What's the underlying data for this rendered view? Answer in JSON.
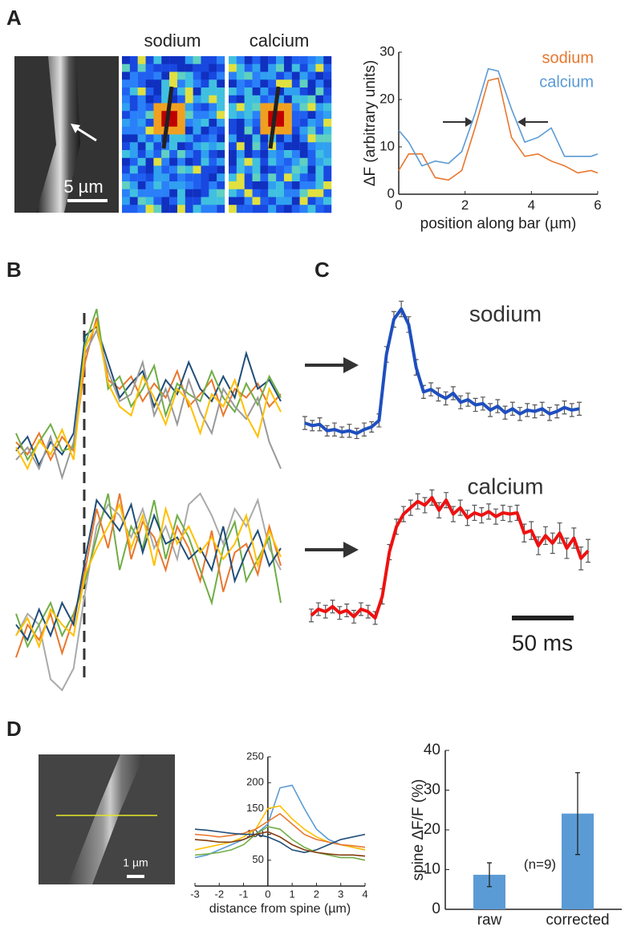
{
  "panel_labels": {
    "a": "A",
    "b": "B",
    "c": "C",
    "d": "D"
  },
  "image_labels": {
    "sodium": "sodium",
    "calcium": "calcium",
    "scale_a": "5 µm",
    "scale_d": "1 µm"
  },
  "chart_data": [
    {
      "type": "line",
      "x": [
        0,
        0.3,
        0.7,
        1.1,
        1.5,
        1.9,
        2.3,
        2.7,
        3.0,
        3.4,
        3.8,
        4.2,
        4.6,
        5.0,
        5.4,
        5.8,
        6.0
      ],
      "series": [
        {
          "name": "sodium",
          "color": "#e8772e",
          "values": [
            5,
            8.5,
            8.5,
            3.5,
            3,
            5,
            14,
            24,
            24.5,
            12,
            8,
            8.5,
            7,
            6,
            4.5,
            5,
            4.5
          ]
        },
        {
          "name": "calcium",
          "color": "#5b9bd5",
          "values": [
            13.5,
            11,
            6,
            7,
            6.5,
            9,
            17,
            26.5,
            26,
            18,
            11,
            12,
            14,
            8,
            8,
            8,
            8.5
          ]
        }
      ],
      "xlim": [
        0,
        6
      ],
      "ylim": [
        0,
        30
      ],
      "xticks": [
        0,
        2,
        4,
        6
      ],
      "yticks": [
        0,
        10,
        20,
        30
      ],
      "x_label": "position along bar (µm)",
      "y_label": "ΔF (arbitrary units)",
      "legend": "upper right"
    },
    {
      "type": "traces",
      "series": [
        {
          "color": "#e8772e",
          "values": [
            25,
            18,
            30,
            15,
            28,
            20,
            70,
            95,
            60,
            55,
            62,
            48,
            58,
            50,
            65,
            45,
            52,
            60,
            40,
            55,
            50,
            58,
            45,
            52
          ]
        },
        {
          "color": "#1f4e79",
          "values": [
            20,
            28,
            12,
            25,
            18,
            30,
            85,
            90,
            70,
            50,
            58,
            65,
            45,
            60,
            52,
            70,
            55,
            48,
            62,
            50,
            75,
            55,
            60,
            48
          ]
        },
        {
          "color": "#70ad47",
          "values": [
            30,
            15,
            25,
            35,
            20,
            22,
            80,
            100,
            55,
            62,
            45,
            55,
            68,
            40,
            58,
            52,
            48,
            65,
            50,
            42,
            58,
            46,
            62,
            50
          ]
        },
        {
          "color": "#999999",
          "values": [
            15,
            22,
            10,
            28,
            5,
            25,
            75,
            88,
            65,
            48,
            52,
            70,
            40,
            55,
            35,
            60,
            42,
            30,
            55,
            45,
            38,
            50,
            25,
            10
          ]
        },
        {
          "color": "#ffc000",
          "values": [
            22,
            10,
            26,
            18,
            32,
            15,
            78,
            92,
            58,
            45,
            40,
            62,
            50,
            35,
            55,
            48,
            30,
            52,
            45,
            60,
            40,
            28,
            55,
            42
          ]
        }
      ]
    },
    {
      "type": "traces",
      "series": [
        {
          "color": "#aaaaaa",
          "values": [
            30,
            40,
            35,
            10,
            5,
            15,
            50,
            80,
            90,
            85,
            75,
            88,
            70,
            80,
            65,
            90,
            95,
            85,
            72,
            88,
            80,
            92,
            70,
            60
          ]
        },
        {
          "color": "#70ad47",
          "values": [
            40,
            25,
            35,
            45,
            30,
            40,
            55,
            75,
            95,
            60,
            80,
            70,
            92,
            65,
            85,
            75,
            60,
            45,
            70,
            82,
            55,
            65,
            75,
            45
          ]
        },
        {
          "color": "#e8772e",
          "values": [
            20,
            35,
            28,
            40,
            22,
            38,
            60,
            88,
            70,
            95,
            65,
            82,
            75,
            60,
            80,
            70,
            55,
            78,
            50,
            68,
            72,
            58,
            80,
            62
          ]
        },
        {
          "color": "#1f4e79",
          "values": [
            35,
            28,
            42,
            30,
            45,
            35,
            65,
            92,
            85,
            78,
            90,
            68,
            85,
            72,
            75,
            65,
            70,
            60,
            80,
            55,
            68,
            78,
            62,
            70
          ]
        },
        {
          "color": "#ffc000",
          "values": [
            30,
            38,
            25,
            42,
            35,
            30,
            58,
            70,
            80,
            90,
            70,
            85,
            62,
            88,
            72,
            80,
            68,
            75,
            65,
            72,
            85,
            62,
            78,
            66
          ]
        }
      ]
    },
    {
      "type": "errortrace",
      "scale_bar_label": "50 ms",
      "series": [
        {
          "name": "sodium",
          "color": "#1f4fbf",
          "values": [
            12,
            10,
            11,
            6,
            7,
            5,
            6,
            4,
            7,
            9,
            14,
            65,
            92,
            100,
            88,
            55,
            36,
            38,
            34,
            31,
            35,
            28,
            30,
            26,
            27,
            22,
            25,
            20,
            23,
            19,
            22,
            21,
            23,
            19,
            21,
            24,
            22,
            23
          ],
          "errors": [
            5,
            4,
            5,
            4,
            5,
            4,
            5,
            4,
            5,
            4,
            5,
            6,
            6,
            6,
            6,
            6,
            5,
            5,
            5,
            5,
            5,
            5,
            5,
            5,
            5,
            5,
            5,
            5,
            5,
            5,
            5,
            5,
            5,
            5,
            5,
            5,
            5,
            5
          ]
        },
        {
          "name": "calcium",
          "color": "#ee1111",
          "values": [
            5,
            10,
            8,
            12,
            7,
            9,
            4,
            10,
            8,
            3,
            20,
            55,
            75,
            85,
            90,
            95,
            92,
            98,
            88,
            96,
            85,
            90,
            82,
            86,
            84,
            87,
            83,
            86,
            85,
            86,
            70,
            72,
            60,
            68,
            62,
            70,
            58,
            66,
            50,
            56
          ],
          "errors": [
            5,
            5,
            5,
            5,
            5,
            5,
            5,
            5,
            5,
            5,
            6,
            6,
            6,
            6,
            6,
            6,
            6,
            6,
            6,
            6,
            6,
            6,
            6,
            6,
            6,
            6,
            6,
            6,
            6,
            6,
            7,
            7,
            7,
            7,
            8,
            8,
            8,
            8,
            9,
            9
          ]
        }
      ]
    },
    {
      "type": "line",
      "x": [
        -3,
        -2.5,
        -2,
        -1.5,
        -1,
        -0.5,
        0,
        0.5,
        1,
        1.5,
        2,
        2.5,
        3,
        3.5,
        4
      ],
      "series": [
        {
          "color": "#5b9bd5",
          "values": [
            55,
            60,
            70,
            80,
            90,
            100,
            120,
            190,
            195,
            150,
            110,
            90,
            80,
            75,
            70
          ]
        },
        {
          "color": "#ffc000",
          "values": [
            70,
            75,
            80,
            85,
            95,
            110,
            150,
            155,
            130,
            110,
            95,
            85,
            80,
            75,
            70
          ]
        },
        {
          "color": "#e8772e",
          "values": [
            100,
            98,
            95,
            98,
            102,
            110,
            125,
            140,
            120,
            100,
            90,
            85,
            80,
            78,
            75
          ]
        },
        {
          "color": "#1f4e79",
          "values": [
            110,
            108,
            105,
            102,
            100,
            100,
            95,
            85,
            70,
            65,
            70,
            80,
            90,
            95,
            100
          ]
        },
        {
          "color": "#70ad47",
          "values": [
            60,
            62,
            65,
            70,
            80,
            100,
            115,
            110,
            90,
            75,
            65,
            60,
            55,
            55,
            50
          ]
        },
        {
          "color": "#843c0c",
          "values": [
            90,
            88,
            85,
            85,
            90,
            100,
            105,
            95,
            80,
            70,
            65,
            62,
            60,
            60,
            58
          ]
        }
      ],
      "xlim": [
        -3,
        4
      ],
      "ylim": [
        0,
        250
      ],
      "xticks": [
        -3,
        -2,
        -1,
        0,
        1,
        2,
        3,
        4
      ],
      "yticks": [
        50,
        100,
        150,
        200,
        250
      ],
      "x_label": "distance from spine (µm)"
    },
    {
      "type": "bar",
      "categories": [
        "raw",
        "corrected"
      ],
      "values": [
        8.7,
        24.1
      ],
      "errors": [
        3,
        10.3
      ],
      "color": "#5b9bd5",
      "ylim": [
        0,
        40
      ],
      "yticks": [
        0,
        10,
        20,
        30,
        40
      ],
      "y_label": "spine ΔF/F (%)",
      "annotation": "(n=9)"
    }
  ]
}
